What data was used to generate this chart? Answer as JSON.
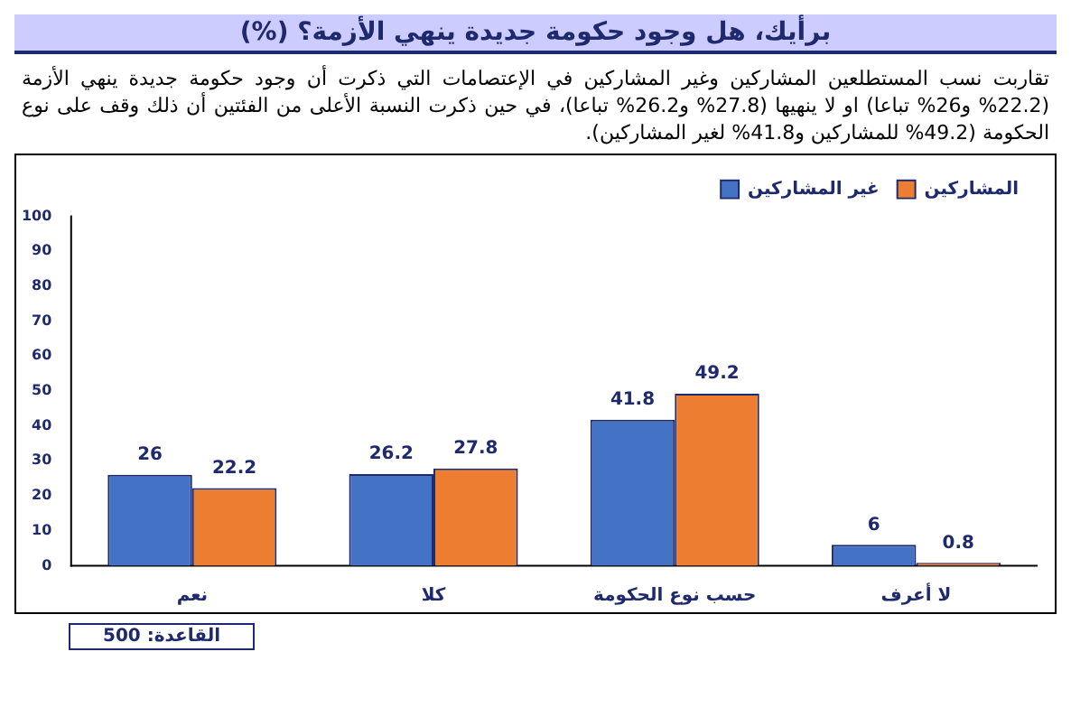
{
  "chart_data": {
    "type": "bar",
    "title": "برأيك، هل وجود حكومة جديدة ينهي الأزمة؟ (%)",
    "subtitle": "تقاربت نسب المستطلعين المشاركين وغير المشاركين في الإعتصامات التي ذكرت أن وجود حكومة جديدة ينهي الأزمة (22.2% و26% تباعا) او لا ينهيها (27.8% و26.2% تباعا)، في حين ذكرت النسبة الأعلى من الفئتين أن ذلك وقف على نوع الحكومة (49.2% للمشاركين و41.8% لغير المشاركين).",
    "categories": [
      "نعم",
      "كلا",
      "حسب نوع الحكومة",
      "لا أعرف"
    ],
    "series": [
      {
        "name": "غير المشاركين",
        "color": "#4472c4",
        "values": [
          26,
          26.2,
          41.8,
          6
        ]
      },
      {
        "name": "المشاركين",
        "color": "#ed7d31",
        "values": [
          22.2,
          27.8,
          49.2,
          0.8
        ]
      }
    ],
    "ylim": [
      0,
      100
    ],
    "yticks": [
      0,
      10,
      20,
      30,
      40,
      50,
      60,
      70,
      80,
      90,
      100
    ],
    "grid": false,
    "legend": "top right",
    "data_labels": true,
    "annotations": [
      "القاعدة: 500"
    ]
  }
}
